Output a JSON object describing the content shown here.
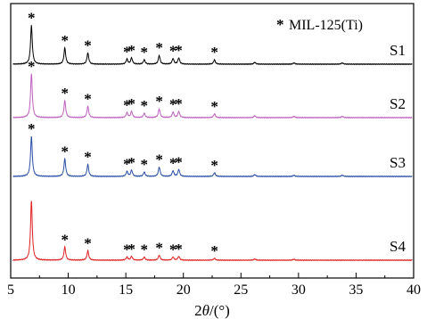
{
  "chart_data": {
    "type": "line",
    "title": "",
    "xlabel_prefix": "2",
    "xlabel_theta": "θ",
    "xlabel_suffix": "/(°)",
    "ylabel": "",
    "xlim": [
      5,
      40
    ],
    "xticks": [
      "5",
      "10",
      "15",
      "20",
      "25",
      "30",
      "35",
      "40"
    ],
    "y_ticks_shown": false,
    "grid": false,
    "legend": {
      "placement": "top-right",
      "marker": "*",
      "text": "MIL-125(Ti)"
    },
    "star_positions_2theta": [
      6.8,
      9.7,
      11.7,
      15.1,
      15.5,
      16.6,
      17.9,
      19.1,
      19.6,
      22.7
    ],
    "series": [
      {
        "name": "S1",
        "color": "#000000",
        "offset": 3,
        "peaks": [
          {
            "x": 6.8,
            "h": 0.62
          },
          {
            "x": 9.7,
            "h": 0.26
          },
          {
            "x": 11.7,
            "h": 0.18
          },
          {
            "x": 15.1,
            "h": 0.08
          },
          {
            "x": 15.5,
            "h": 0.1
          },
          {
            "x": 16.6,
            "h": 0.07
          },
          {
            "x": 17.9,
            "h": 0.14
          },
          {
            "x": 19.1,
            "h": 0.09
          },
          {
            "x": 19.6,
            "h": 0.1
          },
          {
            "x": 22.7,
            "h": 0.07
          },
          {
            "x": 26.2,
            "h": 0.03
          },
          {
            "x": 29.6,
            "h": 0.02
          },
          {
            "x": 33.8,
            "h": 0.02
          }
        ],
        "star_x": [
          6.8,
          9.7,
          11.7,
          15.1,
          15.5,
          16.6,
          17.9,
          19.1,
          19.6,
          22.7
        ]
      },
      {
        "name": "S2",
        "color": "#c060c0",
        "offset": 2,
        "peaks": [
          {
            "x": 6.8,
            "h": 0.7
          },
          {
            "x": 9.7,
            "h": 0.27
          },
          {
            "x": 11.7,
            "h": 0.18
          },
          {
            "x": 15.1,
            "h": 0.08
          },
          {
            "x": 15.5,
            "h": 0.1
          },
          {
            "x": 16.6,
            "h": 0.07
          },
          {
            "x": 17.9,
            "h": 0.14
          },
          {
            "x": 19.1,
            "h": 0.09
          },
          {
            "x": 19.6,
            "h": 0.1
          },
          {
            "x": 22.7,
            "h": 0.06
          },
          {
            "x": 26.2,
            "h": 0.03
          },
          {
            "x": 29.6,
            "h": 0.02
          },
          {
            "x": 33.8,
            "h": 0.02
          }
        ],
        "star_x": [
          6.8,
          9.7,
          11.7,
          15.1,
          15.5,
          16.6,
          17.9,
          19.1,
          19.6,
          22.7
        ]
      },
      {
        "name": "S3",
        "color": "#2a4fa8",
        "offset": 1,
        "peaks": [
          {
            "x": 6.8,
            "h": 0.64
          },
          {
            "x": 9.7,
            "h": 0.28
          },
          {
            "x": 11.7,
            "h": 0.19
          },
          {
            "x": 15.1,
            "h": 0.08
          },
          {
            "x": 15.5,
            "h": 0.1
          },
          {
            "x": 16.6,
            "h": 0.07
          },
          {
            "x": 17.9,
            "h": 0.15
          },
          {
            "x": 19.1,
            "h": 0.09
          },
          {
            "x": 19.6,
            "h": 0.11
          },
          {
            "x": 22.7,
            "h": 0.06
          },
          {
            "x": 26.2,
            "h": 0.03
          },
          {
            "x": 29.6,
            "h": 0.02
          },
          {
            "x": 33.8,
            "h": 0.02
          }
        ],
        "star_x": [
          6.8,
          9.7,
          11.7,
          15.1,
          15.5,
          16.6,
          17.9,
          19.1,
          19.6,
          22.7
        ]
      },
      {
        "name": "S4",
        "color": "#e02020",
        "offset": 0,
        "peaks": [
          {
            "x": 6.8,
            "h": 0.95
          },
          {
            "x": 9.7,
            "h": 0.21
          },
          {
            "x": 11.7,
            "h": 0.15
          },
          {
            "x": 15.1,
            "h": 0.05
          },
          {
            "x": 15.5,
            "h": 0.06
          },
          {
            "x": 16.6,
            "h": 0.05
          },
          {
            "x": 17.9,
            "h": 0.08
          },
          {
            "x": 19.1,
            "h": 0.05
          },
          {
            "x": 19.6,
            "h": 0.06
          },
          {
            "x": 22.7,
            "h": 0.03
          },
          {
            "x": 26.2,
            "h": 0.02
          },
          {
            "x": 29.6,
            "h": 0.015
          }
        ],
        "star_x": [
          9.7,
          11.7,
          15.1,
          15.5,
          16.6,
          17.9,
          19.1,
          19.6,
          22.7
        ]
      }
    ]
  }
}
